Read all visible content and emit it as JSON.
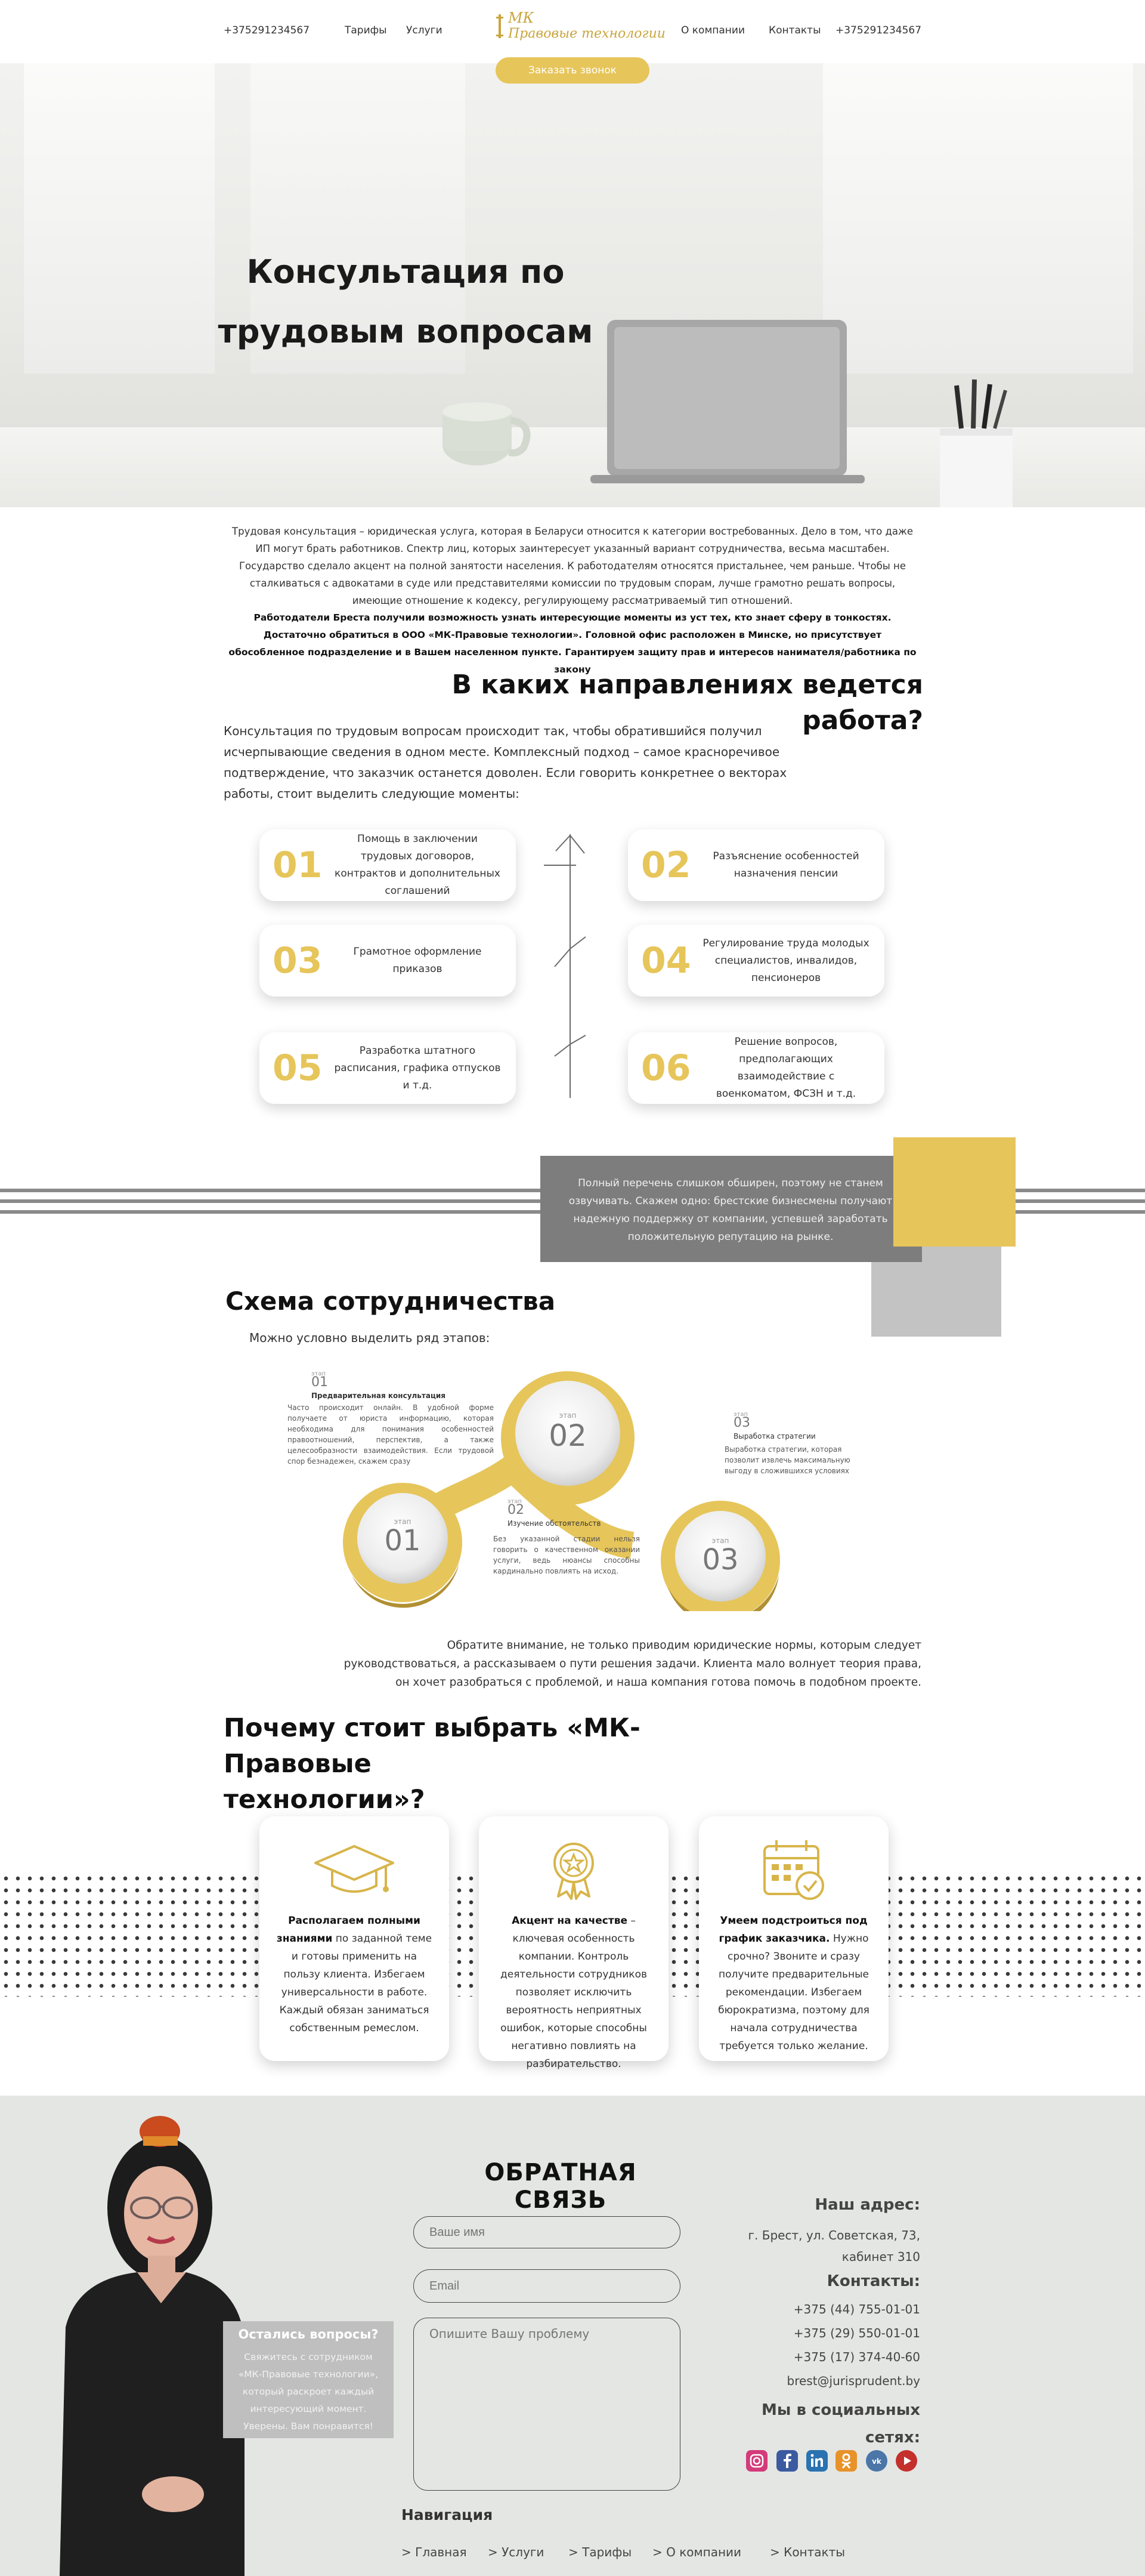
{
  "header": {
    "phone_left": "+375291234567",
    "nav_tariffs": "Тарифы",
    "nav_services": "Услуги",
    "logo_mk": "МК",
    "logo_text": "Правовые технологии",
    "nav_about": "О компании",
    "nav_contacts": "Контакты",
    "phone_right": "+375291234567",
    "cta": "Заказать звонок"
  },
  "hero": {
    "title_line1": "Консультация по",
    "title_line2": "трудовым вопросам"
  },
  "intro": {
    "p1": "Трудовая консультация – юридическая услуга, которая в Беларуси относится к категории востребованных. Дело в том, что даже ИП могут брать работников. Спектр лиц, которых заинтересует указанный вариант сотрудничества, весьма масштабен. Государство сделало акцент на полной занятости населения. К работодателям относятся пристальнее, чем раньше. Чтобы не сталкиваться с адвокатами в суде или представителями комиссии по трудовым спорам, лучше грамотно решать вопросы, имеющие отношение к кодексу, регулирующему рассматриваемый тип отношений.",
    "p2": "Работодатели Бреста получили возможность узнать интересующие моменты из уст тех, кто знает сферу в тонкостях. Достаточно обратиться в ООО «МК-Правовые технологии». Головной офис расположен в Минске, но присутствует обособленное подразделение и в Вашем населенном пункте. Гарантируем защиту прав и интересов нанимателя/работника по закону"
  },
  "directions": {
    "title": "В каких направлениях ведется работа?",
    "lead": "Консультация по трудовым вопросам происходит так, чтобы обратившийся получил исчерпывающие сведения в одном месте. Комплексный подход – самое красноречивое подтверждение, что заказчик останется доволен. Если говорить конкретнее о векторах работы, стоит выделить следующие моменты:",
    "items": [
      {
        "num": "01",
        "text": "Помощь в заключении трудовых договоров, контрактов и дополнительных соглашений"
      },
      {
        "num": "02",
        "text": "Разъяснение особенностей назначения пенсии"
      },
      {
        "num": "03",
        "text": "Грамотное оформление приказов"
      },
      {
        "num": "04",
        "text": "Регулирование труда молодых специалистов, инвалидов, пенсионеров"
      },
      {
        "num": "05",
        "text": "Разработка штатного расписания, графика отпусков и т.д."
      },
      {
        "num": "06",
        "text": "Решение вопросов, предполагающих взаимодействие с военкоматом, ФСЗН и т.д."
      }
    ]
  },
  "banner": {
    "text": "Полный перечень слишком обширен, поэтому не станем озвучивать. Скажем одно: брестские бизнесмены получают надежную поддержку от компании, успевшей заработать положительную репутацию на рынке."
  },
  "scheme": {
    "title": "Схема сотрудничества",
    "subtitle": "Можно условно выделить ряд этапов:",
    "stage_word": "этап",
    "steps": [
      {
        "num": "01",
        "title": "Предварительная консультация",
        "text": "Часто происходит онлайн. В удобной форме получаете от юриста информацию, которая необходима для понимания особенностей правоотношений, перспектив, а также целесообразности взаимодействия. Если трудовой спор безнадежен, скажем сразу"
      },
      {
        "num": "02",
        "title": "Изучение обстоятельств",
        "text": "Без указанной стадии нельзя говорить о качественном оказании услуги, ведь нюансы способны кардинально повлиять на исход."
      },
      {
        "num": "03",
        "title": "Выработка стратегии",
        "text": "Выработка стратегии, которая позволит извлечь максимальную выгоду в сложившихся условиях"
      }
    ],
    "note": "Обратите внимание, не только приводим юридические нормы, которым следует руководствоваться, а рассказываем о пути решения задачи. Клиента мало волнует теория права, он хочет разобраться с проблемой, и наша компания готова помочь в подобном проекте."
  },
  "why": {
    "title_line1": "Почему стоит выбрать «МК-Правовые",
    "title_line2": "технологии»?",
    "cards": [
      {
        "icon": "graduation-cap-icon",
        "bold": "Располагаем полными знаниями",
        "text": " по заданной теме и готовы применить на пользу клиента. Избегаем универсальности в работе. Каждый обязан заниматься собственным ремеслом."
      },
      {
        "icon": "medal-icon",
        "bold": "Акцент на качестве",
        "text": " – ключевая особенность компании. Контроль деятельности сотрудников позволяет исключить вероятность неприятных ошибок, которые способны негативно повлиять на разбирательство."
      },
      {
        "icon": "calendar-check-icon",
        "bold": "Умеем подстроиться под график заказчика.",
        "text": " Нужно срочно? Звоните и сразу получите предварительные рекомендации. Избегаем бюрократизма, поэтому для начала сотрудничества требуется только желание."
      }
    ]
  },
  "footer": {
    "form_title": "ОБРАТНАЯ СВЯЗЬ",
    "name_placeholder": "Ваше имя",
    "email_placeholder": "Email",
    "problem_placeholder": "Опишите Вашу проблему",
    "bubble_title": "Остались вопросы?",
    "bubble_text": "Свяжитесь с сотрудником «МК-Правовые технологии», который раскроет каждый интересующий момент. Уверены. Вам понравится!",
    "address_title": "Наш адрес:",
    "address_line1": "г. Брест, ул. Советская, 73,",
    "address_line2": "кабинет 310",
    "contacts_title": "Контакты:",
    "phone1": "+375 (44) 755-01-01",
    "phone2": "+375 (29) 550-01-01",
    "phone3": "+375 (17) 374-40-60",
    "email": "brest@jurisprudent.by",
    "social_title_line1": "Мы в социальных",
    "social_title_line2": "сетях:",
    "socials": [
      "instagram-icon",
      "facebook-icon",
      "linkedin-icon",
      "odnoklassniki-icon",
      "vk-icon",
      "youtube-icon"
    ],
    "nav_title": "Навигация",
    "nav": [
      "> Главная",
      "> Услуги",
      "> Тарифы",
      "> О компании",
      "> Контакты"
    ]
  },
  "colors": {
    "accent": "#e6c55a",
    "accent_dark": "#b09032",
    "gray_banner": "#7d7d7d",
    "footer_bg": "#e4e6e3"
  }
}
